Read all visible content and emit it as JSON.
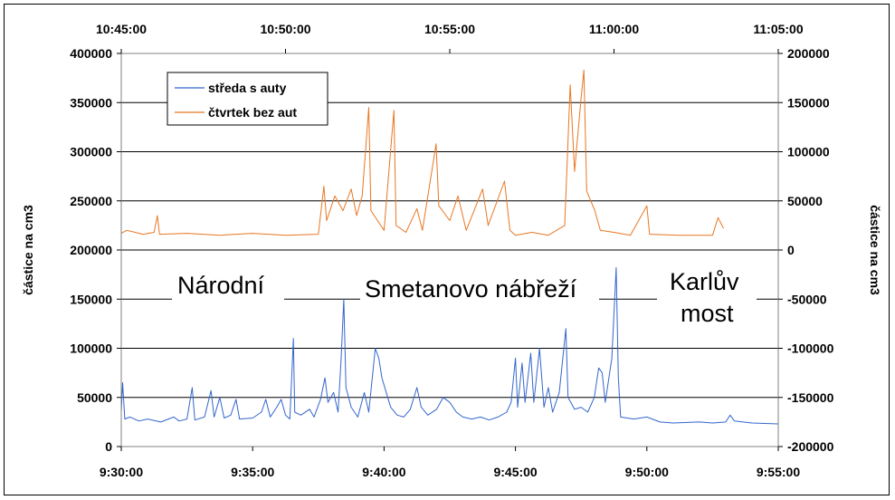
{
  "chart_data": {
    "type": "line",
    "title": "",
    "left_axis": {
      "label": "částice na cm3",
      "ylim": [
        0,
        400000
      ],
      "ticks": [
        0,
        50000,
        100000,
        150000,
        200000,
        250000,
        300000,
        350000,
        400000
      ]
    },
    "right_axis": {
      "label": "částice na cm3",
      "ylim": [
        -200000,
        200000
      ],
      "ticks": [
        -200000,
        -150000,
        -100000,
        -50000,
        0,
        50000,
        100000,
        150000,
        200000
      ]
    },
    "bottom_axis": {
      "xlim": [
        "9:30:00",
        "9:55:00"
      ],
      "ticks": [
        "9:30:00",
        "9:35:00",
        "9:40:00",
        "9:45:00",
        "9:50:00",
        "9:55:00"
      ]
    },
    "top_axis": {
      "xlim": [
        "10:45:00",
        "11:05:00"
      ],
      "ticks": [
        "10:45:00",
        "10:50:00",
        "10:55:00",
        "11:00:00",
        "11:05:00"
      ]
    },
    "grid": "horizontal",
    "legend": {
      "position": "top-left",
      "entries": [
        {
          "label": "středa s auty",
          "color": "#3366CC"
        },
        {
          "label": "čtvrtek bez aut",
          "color": "#E87722"
        }
      ]
    },
    "annotations": [
      "Národní",
      "Smetanovo nábřeží",
      "Karlův",
      "most"
    ],
    "series": [
      {
        "name": "středa s auty",
        "color": "#3366CC",
        "axis": "bottom-left",
        "points": [
          [
            "9:30:00",
            35000
          ],
          [
            "9:30:03",
            65000
          ],
          [
            "9:30:08",
            28000
          ],
          [
            "9:30:20",
            30000
          ],
          [
            "9:30:40",
            26000
          ],
          [
            "9:31:00",
            28000
          ],
          [
            "9:31:30",
            25000
          ],
          [
            "9:32:00",
            30000
          ],
          [
            "9:32:12",
            26000
          ],
          [
            "9:32:30",
            28000
          ],
          [
            "9:32:42",
            60000
          ],
          [
            "9:32:48",
            27000
          ],
          [
            "9:33:10",
            30000
          ],
          [
            "9:33:25",
            57000
          ],
          [
            "9:33:32",
            30000
          ],
          [
            "9:33:45",
            50000
          ],
          [
            "9:33:55",
            29000
          ],
          [
            "9:34:10",
            32000
          ],
          [
            "9:34:22",
            48000
          ],
          [
            "9:34:30",
            28000
          ],
          [
            "9:35:00",
            29000
          ],
          [
            "9:35:20",
            35000
          ],
          [
            "9:35:30",
            48000
          ],
          [
            "9:35:40",
            30000
          ],
          [
            "9:35:55",
            40000
          ],
          [
            "9:36:05",
            48000
          ],
          [
            "9:36:15",
            32000
          ],
          [
            "9:36:25",
            28000
          ],
          [
            "9:36:33",
            110000
          ],
          [
            "9:36:36",
            35000
          ],
          [
            "9:36:50",
            32000
          ],
          [
            "9:37:10",
            38000
          ],
          [
            "9:37:20",
            30000
          ],
          [
            "9:37:35",
            48000
          ],
          [
            "9:37:45",
            70000
          ],
          [
            "9:37:52",
            45000
          ],
          [
            "9:38:05",
            55000
          ],
          [
            "9:38:15",
            35000
          ],
          [
            "9:38:22",
            90000
          ],
          [
            "9:38:28",
            150000
          ],
          [
            "9:38:33",
            60000
          ],
          [
            "9:38:45",
            40000
          ],
          [
            "9:39:00",
            30000
          ],
          [
            "9:39:15",
            55000
          ],
          [
            "9:39:25",
            35000
          ],
          [
            "9:39:40",
            100000
          ],
          [
            "9:39:48",
            90000
          ],
          [
            "9:39:55",
            70000
          ],
          [
            "9:40:05",
            55000
          ],
          [
            "9:40:15",
            40000
          ],
          [
            "9:40:30",
            32000
          ],
          [
            "9:40:45",
            30000
          ],
          [
            "9:41:00",
            38000
          ],
          [
            "9:41:15",
            60000
          ],
          [
            "9:41:25",
            40000
          ],
          [
            "9:41:40",
            32000
          ],
          [
            "9:42:00",
            38000
          ],
          [
            "9:42:15",
            50000
          ],
          [
            "9:42:30",
            45000
          ],
          [
            "9:42:45",
            35000
          ],
          [
            "9:43:00",
            30000
          ],
          [
            "9:43:20",
            28000
          ],
          [
            "9:43:40",
            30000
          ],
          [
            "9:44:00",
            27000
          ],
          [
            "9:44:20",
            30000
          ],
          [
            "9:44:40",
            35000
          ],
          [
            "9:44:50",
            45000
          ],
          [
            "9:45:00",
            90000
          ],
          [
            "9:45:05",
            40000
          ],
          [
            "9:45:15",
            85000
          ],
          [
            "9:45:22",
            45000
          ],
          [
            "9:45:35",
            95000
          ],
          [
            "9:45:42",
            45000
          ],
          [
            "9:45:55",
            100000
          ],
          [
            "9:46:05",
            40000
          ],
          [
            "9:46:15",
            60000
          ],
          [
            "9:46:25",
            35000
          ],
          [
            "9:46:40",
            55000
          ],
          [
            "9:46:55",
            120000
          ],
          [
            "9:47:00",
            50000
          ],
          [
            "9:47:15",
            38000
          ],
          [
            "9:47:30",
            40000
          ],
          [
            "9:47:45",
            35000
          ],
          [
            "9:48:00",
            50000
          ],
          [
            "9:48:10",
            80000
          ],
          [
            "9:48:18",
            75000
          ],
          [
            "9:48:25",
            45000
          ],
          [
            "9:48:40",
            90000
          ],
          [
            "9:48:50",
            182000
          ],
          [
            "9:48:55",
            70000
          ],
          [
            "9:49:00",
            30000
          ],
          [
            "9:49:30",
            28000
          ],
          [
            "9:50:00",
            30000
          ],
          [
            "9:50:30",
            25000
          ],
          [
            "9:51:00",
            24000
          ],
          [
            "9:52:00",
            25000
          ],
          [
            "9:52:30",
            24000
          ],
          [
            "9:53:00",
            25000
          ],
          [
            "9:53:10",
            32000
          ],
          [
            "9:53:20",
            26000
          ],
          [
            "9:54:00",
            24000
          ],
          [
            "9:55:00",
            23000
          ]
        ]
      },
      {
        "name": "čtvrtek bez aut",
        "color": "#E87722",
        "axis": "top-right",
        "points": [
          [
            "10:45:00",
            17000
          ],
          [
            "10:45:10",
            20000
          ],
          [
            "10:45:40",
            16000
          ],
          [
            "10:46:00",
            18000
          ],
          [
            "10:46:06",
            35000
          ],
          [
            "10:46:10",
            16000
          ],
          [
            "10:47:00",
            17000
          ],
          [
            "10:48:00",
            15000
          ],
          [
            "10:49:00",
            17000
          ],
          [
            "10:50:00",
            15000
          ],
          [
            "10:51:00",
            16000
          ],
          [
            "10:51:10",
            65000
          ],
          [
            "10:51:15",
            30000
          ],
          [
            "10:51:30",
            55000
          ],
          [
            "10:51:45",
            40000
          ],
          [
            "10:52:00",
            62000
          ],
          [
            "10:52:10",
            35000
          ],
          [
            "10:52:20",
            55000
          ],
          [
            "10:52:32",
            145000
          ],
          [
            "10:52:36",
            40000
          ],
          [
            "10:53:00",
            20000
          ],
          [
            "10:53:18",
            142000
          ],
          [
            "10:53:22",
            25000
          ],
          [
            "10:53:40",
            18000
          ],
          [
            "10:54:00",
            42000
          ],
          [
            "10:54:10",
            20000
          ],
          [
            "10:54:35",
            108000
          ],
          [
            "10:54:40",
            45000
          ],
          [
            "10:55:00",
            30000
          ],
          [
            "10:55:15",
            55000
          ],
          [
            "10:55:30",
            20000
          ],
          [
            "10:56:00",
            62000
          ],
          [
            "10:56:10",
            25000
          ],
          [
            "10:56:40",
            70000
          ],
          [
            "10:56:50",
            20000
          ],
          [
            "10:57:00",
            15000
          ],
          [
            "10:57:30",
            18000
          ],
          [
            "10:58:00",
            15000
          ],
          [
            "10:58:30",
            25000
          ],
          [
            "10:58:40",
            168000
          ],
          [
            "10:58:48",
            80000
          ],
          [
            "10:59:00",
            155000
          ],
          [
            "10:59:05",
            183000
          ],
          [
            "10:59:10",
            60000
          ],
          [
            "10:59:25",
            40000
          ],
          [
            "10:59:35",
            20000
          ],
          [
            "11:00:00",
            18000
          ],
          [
            "11:00:30",
            15000
          ],
          [
            "11:01:00",
            45000
          ],
          [
            "11:01:05",
            16000
          ],
          [
            "11:02:00",
            15000
          ],
          [
            "11:02:30",
            15000
          ],
          [
            "11:03:00",
            15000
          ],
          [
            "11:03:10",
            33000
          ],
          [
            "11:03:20",
            22000
          ]
        ]
      }
    ]
  }
}
